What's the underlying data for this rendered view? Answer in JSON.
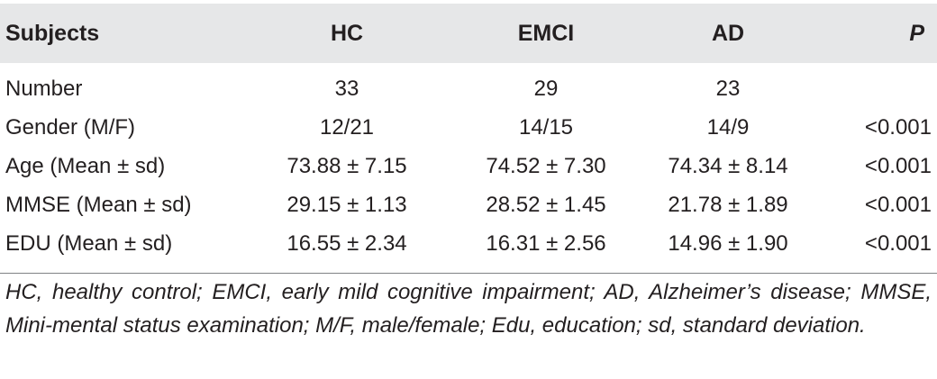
{
  "table": {
    "headers": [
      "Subjects",
      "HC",
      "EMCI",
      "AD",
      "P"
    ],
    "rows": [
      [
        "Number",
        "33",
        "29",
        "23",
        ""
      ],
      [
        "Gender (M/F)",
        "12/21",
        "14/15",
        "14/9",
        "<0.001"
      ],
      [
        "Age (Mean ± sd)",
        "73.88 ± 7.15",
        "74.52 ± 7.30",
        "74.34 ± 8.14",
        "<0.001"
      ],
      [
        "MMSE (Mean ± sd)",
        "29.15 ± 1.13",
        "28.52 ± 1.45",
        "21.78 ± 1.89",
        "<0.001"
      ],
      [
        "EDU (Mean ± sd)",
        "16.55 ± 2.34",
        "16.31 ± 2.56",
        "14.96 ± 1.90",
        "<0.001"
      ]
    ]
  },
  "footnote": "HC, healthy control; EMCI, early mild cognitive impairment; AD, Alzheimer’s disease; MMSE, Mini-mental status examination; M/F, male/female; Edu, education; sd, standard deviation.",
  "colors": {
    "header_background": "#e6e7e8",
    "text": "#231f20",
    "rule": "#808285"
  }
}
